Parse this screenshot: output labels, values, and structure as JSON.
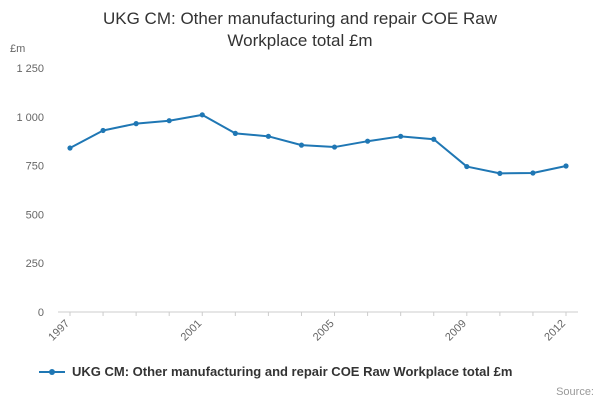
{
  "title": "UKG CM: Other manufacturing and repair COE Raw Workplace total £m",
  "y_axis_unit": "£m",
  "source_label": "Source:",
  "legend": {
    "label": "UKG CM: Other manufacturing and repair COE Raw Workplace total £m"
  },
  "colors": {
    "line": "#1f77b4",
    "axis": "#cccccc",
    "tick_text": "#666666",
    "title_text": "#333333"
  },
  "chart_data": {
    "type": "line",
    "title": "UKG CM: Other manufacturing and repair COE Raw Workplace total £m",
    "xlabel": "",
    "ylabel": "£m",
    "x": [
      1997,
      1998,
      1999,
      2000,
      2001,
      2002,
      2003,
      2004,
      2005,
      2006,
      2007,
      2008,
      2009,
      2010,
      2011,
      2012
    ],
    "series": [
      {
        "name": "UKG CM: Other manufacturing and repair COE Raw Workplace total £m",
        "values": [
          840,
          930,
          965,
          980,
          1010,
          915,
          900,
          855,
          845,
          875,
          900,
          885,
          745,
          710,
          712,
          748
        ]
      }
    ],
    "ylim": [
      0,
      1250
    ],
    "yticks": [
      0,
      250,
      500,
      750,
      1000,
      1250
    ],
    "ytick_labels": [
      "0",
      "250",
      "500",
      "750",
      "1 000",
      "1 250"
    ],
    "xtick_years": [
      1997,
      2001,
      2005,
      2009,
      2012
    ],
    "xtick_labels": [
      "1997",
      "2001",
      "2005",
      "2009",
      "2012"
    ],
    "grid": false,
    "legend_position": "bottom-left",
    "marker": "circle"
  }
}
